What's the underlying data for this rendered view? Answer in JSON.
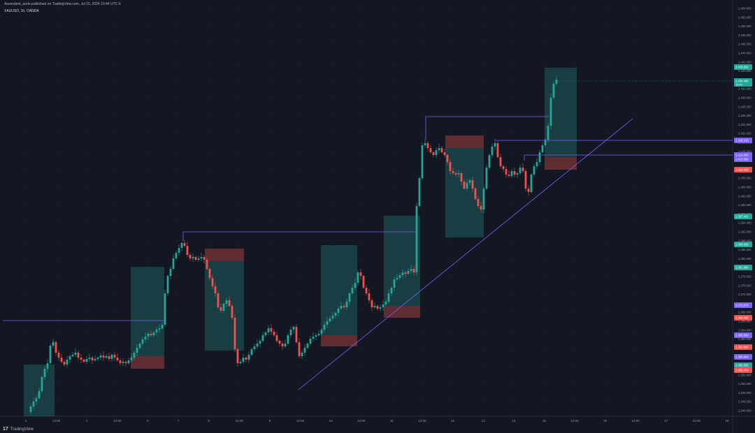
{
  "header": {
    "published": "Ascendent_aerie published on TradingView.com, Jul 15, 2024 10:44 UTC-6",
    "symbol": "XAUUSD, 1h, OANDA"
  },
  "footer": {
    "brand": "TradingView",
    "logo_icon": "tradingview-logo-icon"
  },
  "colors": {
    "background": "#131722",
    "grid": "#2a2e39",
    "bull": "#26a69a",
    "bear": "#ef5350",
    "line": "#7b61ff",
    "axis_text": "#9598a1"
  },
  "chart_data": {
    "type": "candlestick",
    "ylim": [
      2344,
      3454
    ],
    "y_ticks": [
      "2,454.000",
      "2,452.000",
      "2,450.000",
      "2,448.000",
      "2,446.000",
      "2,444.000",
      "2,442.000",
      "2,440.000",
      "2,436.000",
      "2,432.000",
      "2,430.000",
      "2,428.000",
      "2,426.000",
      "2,424.000",
      "2,422.000",
      "2,420.000",
      "2,416.000",
      "2,412.000",
      "2,408.000",
      "2,406.000",
      "2,404.000",
      "2,402.000",
      "2,400.000",
      "2,396.000",
      "2,394.000",
      "2,392.000",
      "2,388.000",
      "2,386.000",
      "2,382.000",
      "2,380.000",
      "2,378.000",
      "2,376.000",
      "2,374.000",
      "2,372.000",
      "2,368.000",
      "2,366.000",
      "2,364.000",
      "2,362.000",
      "2,358.000",
      "2,356.000",
      "2,354.000",
      "2,352.000",
      "2,350.000",
      "2,348.000",
      "2,346.000",
      "2,344.000"
    ],
    "x_ticks": [
      "2",
      "12:00",
      "1",
      "12:00",
      "5",
      "7",
      "8",
      "12:00",
      "9",
      "12:00",
      "10",
      "12:00",
      "11",
      "12:00",
      "12",
      "13",
      "14",
      "15",
      "12:00",
      "16",
      "12:00",
      "17",
      "12:00",
      "18"
    ],
    "price_badges": [
      {
        "label": "2,438.091",
        "color": "#26a69a"
      },
      {
        "label": "2,434.405",
        "sub": "15:47",
        "color": "#26a69a"
      },
      {
        "label": "2,418.310",
        "color": "#7b61ff"
      },
      {
        "label": "2,414.000",
        "color": "#7b61ff"
      },
      {
        "label": "2,413.585",
        "color": "#7b61ff"
      },
      {
        "label": "2,410.000",
        "color": "#ef5350"
      },
      {
        "label": "2,397.401",
        "color": "#26a69a"
      },
      {
        "label": "2,389.906",
        "color": "#26a69a"
      },
      {
        "label": "2,381.890",
        "color": "#26a69a"
      },
      {
        "label": "2,372.976",
        "color": "#7b61ff"
      },
      {
        "label": "2,369.405",
        "color": "#ef5350"
      },
      {
        "label": "2,365.060",
        "color": "#7b61ff"
      },
      {
        "label": "2,362.080",
        "color": "#ef5350"
      },
      {
        "label": "2,358.984",
        "color": "#7b61ff"
      },
      {
        "label": "2,356.556",
        "color": "#26a69a"
      },
      {
        "label": "2,355.404",
        "color": "#ef5350"
      }
    ]
  }
}
